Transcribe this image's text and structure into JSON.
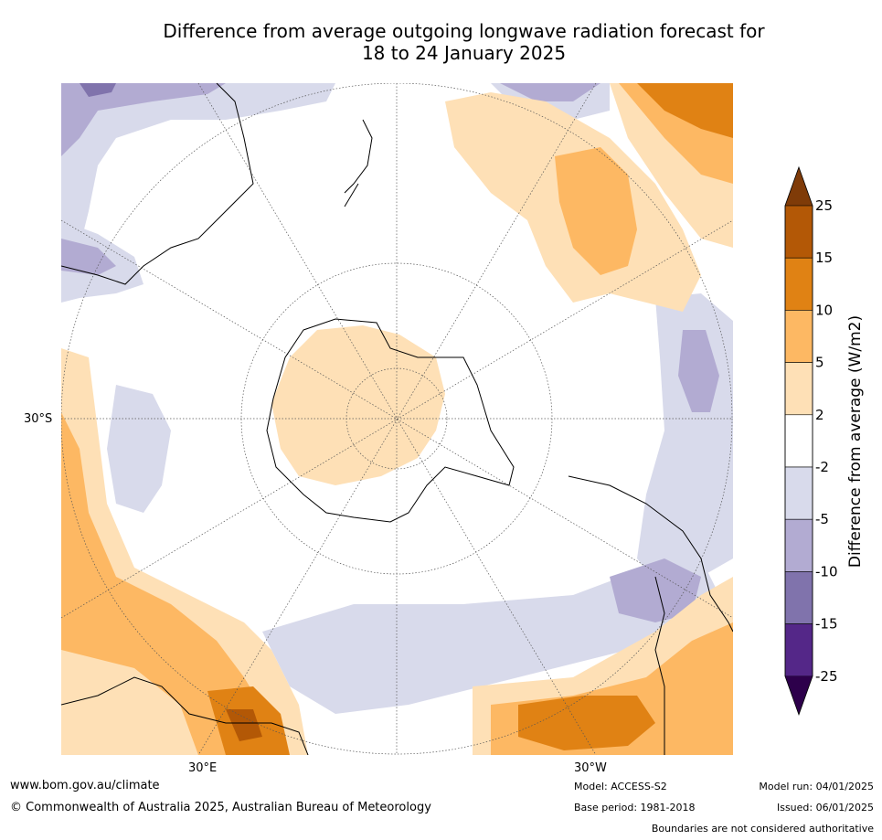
{
  "title_line1": "Difference from average outgoing longwave radiation forecast for",
  "title_line2": "18 to 24 January 2025",
  "map": {
    "projection": "south-polar-stereographic",
    "latitude_label": "30°S",
    "lon_label_left": "30°E",
    "lon_label_right": "30°W",
    "land_outline_color": "#000000",
    "graticule_color": "#555555"
  },
  "colorbar": {
    "label": "Difference from average (W/m2)",
    "ticks": [
      "25",
      "15",
      "10",
      "5",
      "2",
      "-2",
      "-5",
      "-10",
      "-15",
      "-25"
    ],
    "bands": [
      {
        "from": 15,
        "to": 25,
        "color": "#b35806"
      },
      {
        "from": 10,
        "to": 15,
        "color": "#e08214"
      },
      {
        "from": 5,
        "to": 10,
        "color": "#fdb863"
      },
      {
        "from": 2,
        "to": 5,
        "color": "#fee0b6"
      },
      {
        "from": -2,
        "to": 2,
        "color": "#ffffff"
      },
      {
        "from": -5,
        "to": -2,
        "color": "#d8daeb"
      },
      {
        "from": -10,
        "to": -5,
        "color": "#b2abd2"
      },
      {
        "from": -15,
        "to": -10,
        "color": "#8073ac"
      },
      {
        "from": -25,
        "to": -15,
        "color": "#542788"
      }
    ],
    "over_color": "#7f3b08",
    "under_color": "#2d004b"
  },
  "footer": {
    "website": "www.bom.gov.au/climate",
    "copyright": "© Commonwealth of Australia 2025, Australian Bureau of Meteorology",
    "model": "Model: ACCESS-S2",
    "base_period": "Base period: 1981-2018",
    "model_run": "Model run: 04/01/2025",
    "issued": "Issued: 06/01/2025",
    "disclaimer": "Boundaries are not considered authoritative"
  }
}
